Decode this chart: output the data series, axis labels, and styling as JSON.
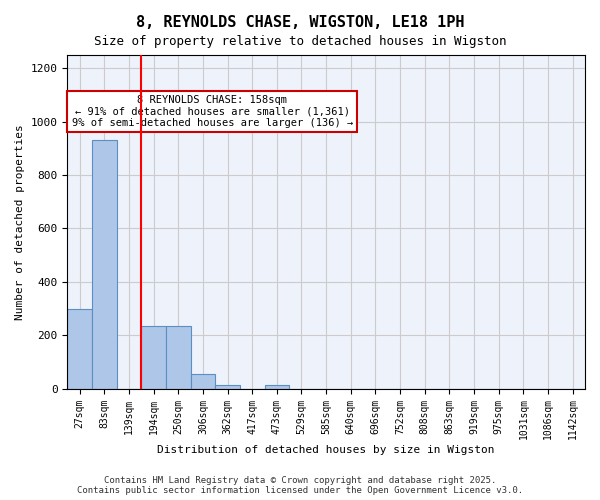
{
  "title": "8, REYNOLDS CHASE, WIGSTON, LE18 1PH",
  "subtitle": "Size of property relative to detached houses in Wigston",
  "xlabel": "Distribution of detached houses by size in Wigston",
  "ylabel": "Number of detached properties",
  "categories": [
    "27sqm",
    "83sqm",
    "139sqm",
    "194sqm",
    "250sqm",
    "306sqm",
    "362sqm",
    "417sqm",
    "473sqm",
    "529sqm",
    "585sqm",
    "640sqm",
    "696sqm",
    "752sqm",
    "808sqm",
    "863sqm",
    "919sqm",
    "975sqm",
    "1031sqm",
    "1086sqm",
    "1142sqm"
  ],
  "values": [
    300,
    930,
    0,
    235,
    235,
    55,
    12,
    0,
    12,
    0,
    0,
    0,
    0,
    0,
    0,
    0,
    0,
    0,
    0,
    0,
    0
  ],
  "bar_color": "#aec6e8",
  "bar_edge_color": "#5a8fc2",
  "grid_color": "#cccccc",
  "background_color": "#eef2fb",
  "red_line_x": 2.5,
  "annotation_text": "8 REYNOLDS CHASE: 158sqm\n← 91% of detached houses are smaller (1,361)\n9% of semi-detached houses are larger (136) →",
  "annotation_box_color": "#ffffff",
  "annotation_box_edge": "#cc0000",
  "ylim": [
    0,
    1250
  ],
  "yticks": [
    0,
    200,
    400,
    600,
    800,
    1000,
    1200
  ],
  "footer": "Contains HM Land Registry data © Crown copyright and database right 2025.\nContains public sector information licensed under the Open Government Licence v3.0."
}
